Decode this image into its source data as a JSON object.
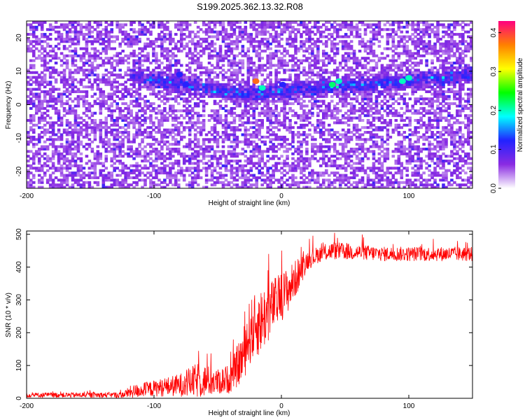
{
  "title": "S199.2025.362.13.32.R08",
  "chart_data": [
    {
      "type": "heatmap",
      "xlabel": "Height of straight line (km)",
      "ylabel": "Frequency (Hz)",
      "xlim": [
        -200,
        150
      ],
      "ylim": [
        -25,
        25
      ],
      "x_ticks": [
        {
          "value": -200,
          "label": "-200"
        },
        {
          "value": -100,
          "label": "-100"
        },
        {
          "value": 0,
          "label": "0"
        },
        {
          "value": 100,
          "label": "100"
        }
      ],
      "y_ticks": [
        {
          "value": 20,
          "label": "20"
        },
        {
          "value": 10,
          "label": "10"
        },
        {
          "value": 0,
          "label": "0"
        },
        {
          "value": -10,
          "label": "-10"
        },
        {
          "value": -20,
          "label": "-20"
        }
      ],
      "colorbar": {
        "label": "Normalized spectral amplitude",
        "range": [
          0.0,
          0.43
        ],
        "ticks": [
          {
            "value": 0.0,
            "label": "0.0"
          },
          {
            "value": 0.1,
            "label": "0.1"
          },
          {
            "value": 0.2,
            "label": "0.2"
          },
          {
            "value": 0.3,
            "label": "0.3"
          },
          {
            "value": 0.4,
            "label": "0.4"
          }
        ],
        "colors": [
          "#ffffff",
          "#8a2be2",
          "#2222ff",
          "#00ffff",
          "#00ff00",
          "#ffff00",
          "#ff8000",
          "#ff0080"
        ]
      },
      "ridge": {
        "note_free": true,
        "x_start": -120,
        "x_end": 150,
        "freq_start": 9,
        "freq_dip": 3,
        "dip_x": -30,
        "freq_end": 9
      },
      "bright_spots": [
        {
          "x": -75,
          "y": 6,
          "v": 0.12
        },
        {
          "x": -20,
          "y": 7,
          "v": 0.38
        },
        {
          "x": -15,
          "y": 5,
          "v": 0.2
        },
        {
          "x": 1,
          "y": 6,
          "v": 0.12
        },
        {
          "x": 40,
          "y": 6,
          "v": 0.22
        },
        {
          "x": 45,
          "y": 7,
          "v": 0.2
        },
        {
          "x": 95,
          "y": 7,
          "v": 0.2
        },
        {
          "x": 100,
          "y": 8,
          "v": 0.2
        },
        {
          "x": -80,
          "y": 9,
          "v": 0.12
        }
      ]
    },
    {
      "type": "line",
      "xlabel": "Height of straight line (km)",
      "ylabel": "SNR (10 * v/v)",
      "xlim": [
        -200,
        150
      ],
      "ylim": [
        0,
        510
      ],
      "color": "#ff0000",
      "x_ticks": [
        {
          "value": -200,
          "label": "-200"
        },
        {
          "value": -100,
          "label": "-100"
        },
        {
          "value": 0,
          "label": "0"
        },
        {
          "value": 100,
          "label": "100"
        }
      ],
      "y_ticks": [
        {
          "value": 0,
          "label": "0"
        },
        {
          "value": 100,
          "label": "100"
        },
        {
          "value": 200,
          "label": "200"
        },
        {
          "value": 300,
          "label": "300"
        },
        {
          "value": 400,
          "label": "400"
        },
        {
          "value": 500,
          "label": "500"
        }
      ],
      "trend": [
        {
          "x": -200,
          "base": 10,
          "spread": 15
        },
        {
          "x": -125,
          "base": 10,
          "spread": 18
        },
        {
          "x": -118,
          "base": 20,
          "spread": 40
        },
        {
          "x": -100,
          "base": 30,
          "spread": 50
        },
        {
          "x": -80,
          "base": 40,
          "spread": 70
        },
        {
          "x": -65,
          "base": 55,
          "spread": 110
        },
        {
          "x": -50,
          "base": 50,
          "spread": 80
        },
        {
          "x": -40,
          "base": 60,
          "spread": 90
        },
        {
          "x": -30,
          "base": 130,
          "spread": 160
        },
        {
          "x": -25,
          "base": 200,
          "spread": 200
        },
        {
          "x": -15,
          "base": 240,
          "spread": 200
        },
        {
          "x": -5,
          "base": 290,
          "spread": 160
        },
        {
          "x": 5,
          "base": 330,
          "spread": 140
        },
        {
          "x": 12,
          "base": 370,
          "spread": 110
        },
        {
          "x": 20,
          "base": 420,
          "spread": 60
        },
        {
          "x": 30,
          "base": 440,
          "spread": 50
        },
        {
          "x": 40,
          "base": 450,
          "spread": 55
        },
        {
          "x": 80,
          "base": 440,
          "spread": 45
        },
        {
          "x": 110,
          "base": 440,
          "spread": 45
        },
        {
          "x": 150,
          "base": 440,
          "spread": 45
        }
      ]
    }
  ]
}
